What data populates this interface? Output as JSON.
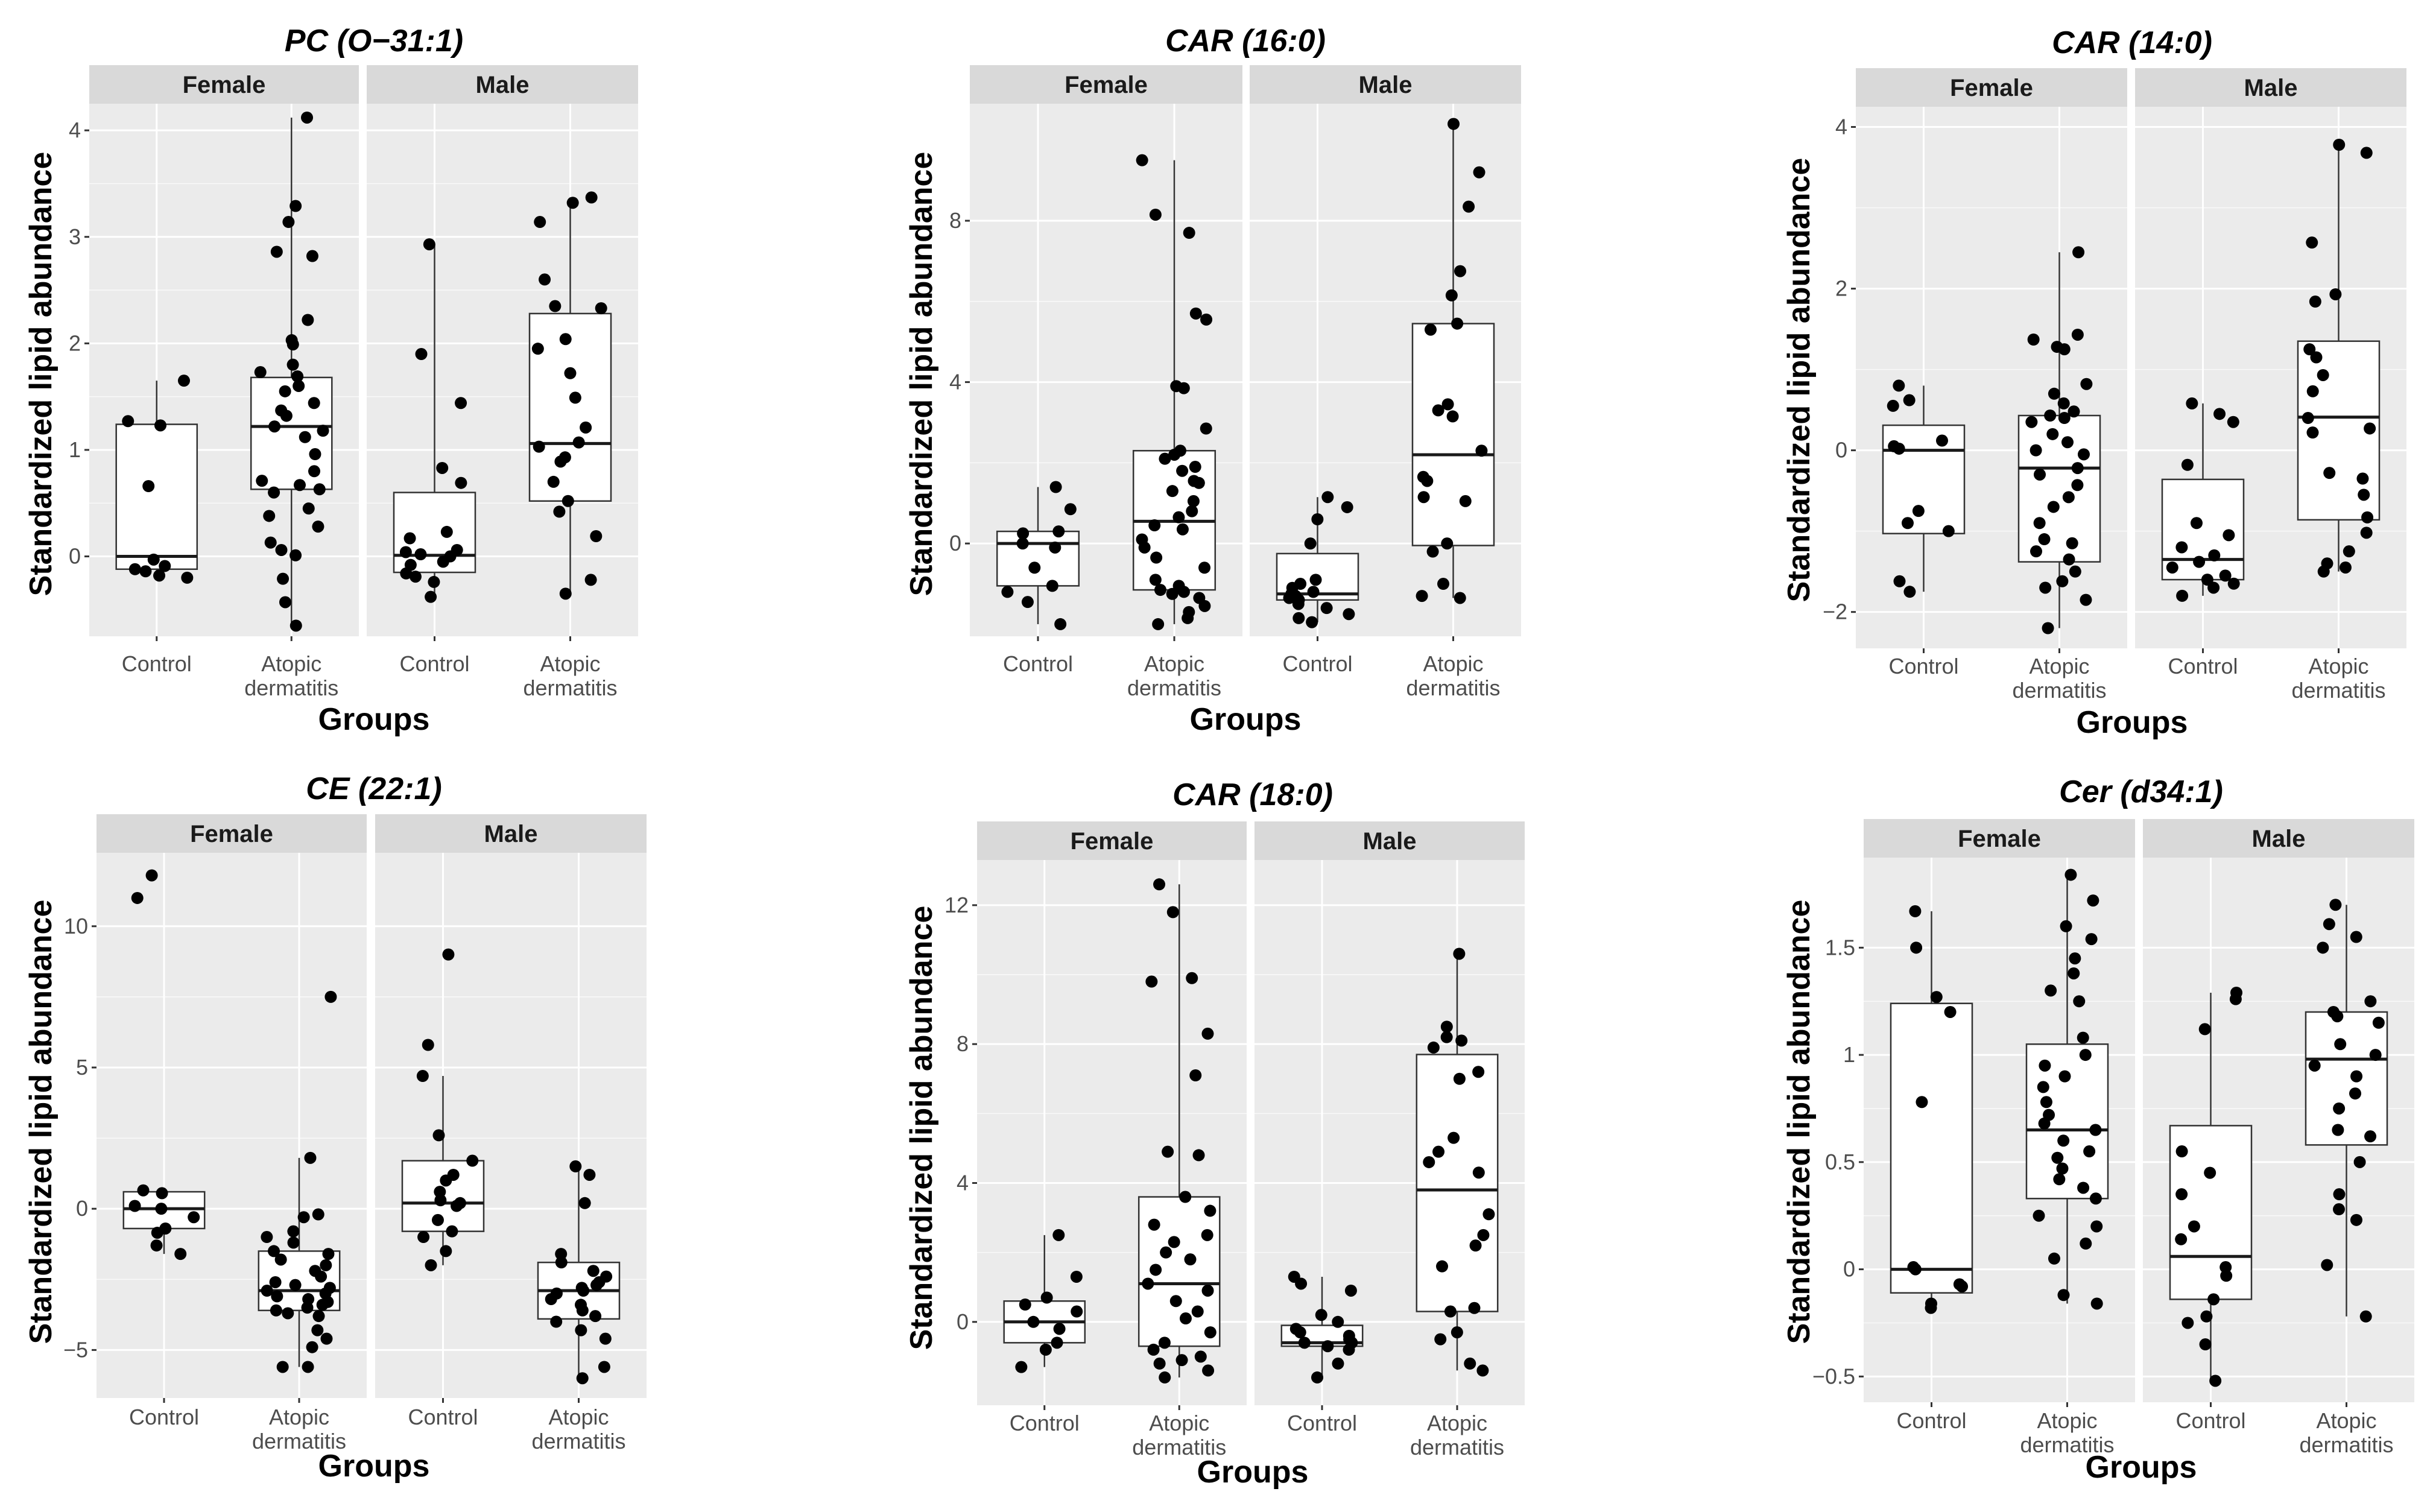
{
  "chart_data": [
    {
      "type": "boxplot",
      "title": "PC (O−31:1)",
      "xlabel": "Groups",
      "ylabel": "Standardized lipid abundance",
      "facets": [
        "Female",
        "Male"
      ],
      "categories": [
        "Control",
        "Atopic dermatitis"
      ],
      "ylim": [
        -0.75,
        4.25
      ],
      "yticks": [
        0,
        1,
        2,
        3,
        4
      ],
      "boxes": [
        {
          "facet": "Female",
          "group": "Control",
          "q1": -0.12,
          "median": 0.0,
          "q3": 1.24,
          "whisker_low": -0.2,
          "whisker_high": 1.65
        },
        {
          "facet": "Female",
          "group": "Atopic dermatitis",
          "q1": 0.63,
          "median": 1.22,
          "q3": 1.68,
          "whisker_low": -0.65,
          "whisker_high": 4.12
        },
        {
          "facet": "Male",
          "group": "Control",
          "q1": -0.15,
          "median": 0.01,
          "q3": 0.6,
          "whisker_low": -0.38,
          "whisker_high": 2.93
        },
        {
          "facet": "Male",
          "group": "Atopic dermatitis",
          "q1": 0.52,
          "median": 1.06,
          "q3": 2.28,
          "whisker_low": -0.35,
          "whisker_high": 3.37
        }
      ],
      "points": [
        {
          "facet": "Female",
          "group": "Control",
          "values": [
            1.65,
            1.27,
            1.23,
            0.66,
            -0.03,
            -0.09,
            -0.12,
            -0.14,
            -0.18,
            -0.2
          ]
        },
        {
          "facet": "Female",
          "group": "Atopic dermatitis",
          "values": [
            4.12,
            3.29,
            3.14,
            2.86,
            2.82,
            2.22,
            2.03,
            1.99,
            1.8,
            1.73,
            1.69,
            1.6,
            1.55,
            1.44,
            1.37,
            1.32,
            1.22,
            1.18,
            1.12,
            0.96,
            0.8,
            0.71,
            0.67,
            0.63,
            0.6,
            0.45,
            0.38,
            0.28,
            0.13,
            0.06,
            0.01,
            -0.21,
            -0.43,
            -0.65
          ]
        },
        {
          "facet": "Male",
          "group": "Control",
          "values": [
            2.93,
            1.9,
            1.44,
            0.83,
            0.69,
            0.23,
            0.17,
            0.06,
            0.04,
            0.02,
            0.0,
            -0.05,
            -0.08,
            -0.16,
            -0.19,
            -0.24,
            -0.38
          ]
        },
        {
          "facet": "Male",
          "group": "Atopic dermatitis",
          "values": [
            3.37,
            3.32,
            3.14,
            2.6,
            2.35,
            2.33,
            2.04,
            1.95,
            1.72,
            1.49,
            1.21,
            1.07,
            1.03,
            0.93,
            0.89,
            0.7,
            0.52,
            0.42,
            0.19,
            -0.22,
            -0.35
          ]
        }
      ]
    },
    {
      "type": "boxplot",
      "title": "CAR (16:0)",
      "xlabel": "Groups",
      "ylabel": "Standardized lipid abundance",
      "facets": [
        "Female",
        "Male"
      ],
      "categories": [
        "Control",
        "Atopic dermatitis"
      ],
      "ylim": [
        -2.3,
        10.9
      ],
      "yticks": [
        0,
        4,
        8
      ],
      "boxes": [
        {
          "facet": "Female",
          "group": "Control",
          "q1": -1.05,
          "median": 0.0,
          "q3": 0.3,
          "whisker_low": -2.0,
          "whisker_high": 1.4
        },
        {
          "facet": "Female",
          "group": "Atopic dermatitis",
          "q1": -1.15,
          "median": 0.55,
          "q3": 2.3,
          "whisker_low": -2.0,
          "whisker_high": 9.5
        },
        {
          "facet": "Male",
          "group": "Control",
          "q1": -1.4,
          "median": -1.25,
          "q3": -0.25,
          "whisker_low": -1.95,
          "whisker_high": 1.15
        },
        {
          "facet": "Male",
          "group": "Atopic dermatitis",
          "q1": -0.05,
          "median": 2.2,
          "q3": 5.45,
          "whisker_low": -1.35,
          "whisker_high": 10.4
        }
      ],
      "points": [
        {
          "facet": "Female",
          "group": "Control",
          "values": [
            1.4,
            0.85,
            0.3,
            0.25,
            0.0,
            -0.1,
            -0.6,
            -1.05,
            -1.2,
            -1.45,
            -2.0
          ]
        },
        {
          "facet": "Female",
          "group": "Atopic dermatitis",
          "values": [
            9.5,
            8.15,
            7.7,
            5.7,
            5.55,
            3.9,
            3.85,
            2.85,
            2.3,
            2.2,
            2.1,
            1.9,
            1.8,
            1.55,
            1.5,
            1.3,
            1.05,
            0.8,
            0.65,
            0.45,
            0.35,
            0.1,
            -0.1,
            -0.35,
            -0.6,
            -0.9,
            -1.05,
            -1.15,
            -1.2,
            -1.25,
            -1.35,
            -1.55,
            -1.7,
            -1.85,
            -2.0
          ]
        },
        {
          "facet": "Male",
          "group": "Control",
          "values": [
            1.15,
            0.9,
            0.6,
            0.0,
            -0.9,
            -1.0,
            -1.1,
            -1.2,
            -1.25,
            -1.3,
            -1.35,
            -1.4,
            -1.5,
            -1.6,
            -1.75,
            -1.85,
            -1.95
          ]
        },
        {
          "facet": "Male",
          "group": "Atopic dermatitis",
          "values": [
            10.4,
            9.2,
            8.35,
            6.75,
            6.15,
            5.45,
            5.3,
            3.45,
            3.3,
            3.15,
            2.3,
            1.65,
            1.55,
            1.15,
            1.05,
            0.0,
            -0.2,
            -1.0,
            -1.3,
            -1.35
          ]
        }
      ]
    },
    {
      "type": "boxplot",
      "title": "CAR (14:0)",
      "xlabel": "Groups",
      "ylabel": "Standardized lipid abundance",
      "facets": [
        "Female",
        "Male"
      ],
      "categories": [
        "Control",
        "Atopic dermatitis"
      ],
      "ylim": [
        -2.45,
        4.25
      ],
      "yticks": [
        -2,
        0,
        2,
        4
      ],
      "boxes": [
        {
          "facet": "Female",
          "group": "Control",
          "q1": -1.03,
          "median": 0.0,
          "q3": 0.31,
          "whisker_low": -1.75,
          "whisker_high": 0.8
        },
        {
          "facet": "Female",
          "group": "Atopic dermatitis",
          "q1": -1.38,
          "median": -0.22,
          "q3": 0.43,
          "whisker_low": -2.2,
          "whisker_high": 2.45
        },
        {
          "facet": "Male",
          "group": "Control",
          "q1": -1.6,
          "median": -1.35,
          "q3": -0.36,
          "whisker_low": -1.8,
          "whisker_high": 0.58
        },
        {
          "facet": "Male",
          "group": "Atopic dermatitis",
          "q1": -0.86,
          "median": 0.41,
          "q3": 1.35,
          "whisker_low": -1.5,
          "whisker_high": 3.78
        }
      ],
      "points": [
        {
          "facet": "Female",
          "group": "Control",
          "values": [
            0.8,
            0.62,
            0.55,
            0.12,
            0.05,
            0.02,
            -0.75,
            -0.9,
            -1.0,
            -1.62,
            -1.75
          ]
        },
        {
          "facet": "Female",
          "group": "Atopic dermatitis",
          "values": [
            2.45,
            1.43,
            1.37,
            1.28,
            1.25,
            0.82,
            0.7,
            0.58,
            0.48,
            0.43,
            0.4,
            0.35,
            0.2,
            0.1,
            0.0,
            -0.05,
            -0.22,
            -0.3,
            -0.43,
            -0.58,
            -0.7,
            -0.9,
            -1.1,
            -1.15,
            -1.25,
            -1.35,
            -1.5,
            -1.62,
            -1.7,
            -1.85,
            -2.2
          ]
        },
        {
          "facet": "Male",
          "group": "Control",
          "values": [
            0.58,
            0.45,
            0.35,
            -0.18,
            -0.9,
            -1.05,
            -1.2,
            -1.3,
            -1.38,
            -1.45,
            -1.55,
            -1.6,
            -1.65,
            -1.7,
            -1.8
          ]
        },
        {
          "facet": "Male",
          "group": "Atopic dermatitis",
          "values": [
            3.78,
            3.68,
            2.57,
            1.93,
            1.84,
            1.25,
            1.15,
            0.93,
            0.73,
            0.4,
            0.27,
            0.22,
            -0.28,
            -0.35,
            -0.55,
            -0.83,
            -1.02,
            -1.25,
            -1.4,
            -1.45,
            -1.5
          ]
        }
      ]
    },
    {
      "type": "boxplot",
      "title": "CE (22:1)",
      "xlabel": "Groups",
      "ylabel": "Standardized lipid abundance",
      "facets": [
        "Female",
        "Male"
      ],
      "categories": [
        "Control",
        "Atopic dermatitis"
      ],
      "ylim": [
        -6.7,
        12.6
      ],
      "yticks": [
        -5,
        0,
        5,
        10
      ],
      "boxes": [
        {
          "facet": "Female",
          "group": "Control",
          "q1": -0.7,
          "median": 0.0,
          "q3": 0.6,
          "whisker_low": -1.6,
          "whisker_high": 0.65
        },
        {
          "facet": "Female",
          "group": "Atopic dermatitis",
          "q1": -3.6,
          "median": -2.9,
          "q3": -1.5,
          "whisker_low": -5.6,
          "whisker_high": 1.8
        },
        {
          "facet": "Male",
          "group": "Control",
          "q1": -0.8,
          "median": 0.2,
          "q3": 1.7,
          "whisker_low": -2.0,
          "whisker_high": 4.7
        },
        {
          "facet": "Male",
          "group": "Atopic dermatitis",
          "q1": -3.9,
          "median": -2.9,
          "q3": -1.9,
          "whisker_low": -6.0,
          "whisker_high": 1.5
        }
      ],
      "points": [
        {
          "facet": "Female",
          "group": "Control",
          "values": [
            11.8,
            11.0,
            0.65,
            0.55,
            0.1,
            0.0,
            -0.3,
            -0.7,
            -0.85,
            -1.3,
            -1.6
          ]
        },
        {
          "facet": "Female",
          "group": "Atopic dermatitis",
          "values": [
            7.5,
            1.8,
            -0.2,
            -0.3,
            -0.8,
            -1.0,
            -1.2,
            -1.5,
            -1.6,
            -1.8,
            -2.0,
            -2.2,
            -2.4,
            -2.6,
            -2.7,
            -2.8,
            -2.9,
            -3.0,
            -3.1,
            -3.2,
            -3.3,
            -3.4,
            -3.5,
            -3.6,
            -3.7,
            -3.8,
            -4.3,
            -4.6,
            -4.9,
            -5.6,
            -5.6
          ]
        },
        {
          "facet": "Male",
          "group": "Control",
          "values": [
            9.0,
            5.8,
            4.7,
            2.6,
            1.7,
            1.2,
            1.0,
            0.6,
            0.3,
            0.2,
            0.1,
            -0.4,
            -0.8,
            -1.0,
            -1.5,
            -2.0
          ]
        },
        {
          "facet": "Male",
          "group": "Atopic dermatitis",
          "values": [
            1.5,
            1.2,
            0.2,
            -1.6,
            -1.9,
            -2.2,
            -2.4,
            -2.6,
            -2.7,
            -2.8,
            -2.9,
            -3.0,
            -3.2,
            -3.4,
            -3.6,
            -3.8,
            -4.0,
            -4.3,
            -4.6,
            -5.6,
            -6.0
          ]
        }
      ]
    },
    {
      "type": "boxplot",
      "title": "CAR (18:0)",
      "xlabel": "Groups",
      "ylabel": "Standardized lipid abundance",
      "facets": [
        "Female",
        "Male"
      ],
      "categories": [
        "Control",
        "Atopic dermatitis"
      ],
      "ylim": [
        -2.4,
        13.3
      ],
      "yticks": [
        0,
        4,
        8,
        12
      ],
      "boxes": [
        {
          "facet": "Female",
          "group": "Control",
          "q1": -0.6,
          "median": 0.0,
          "q3": 0.6,
          "whisker_low": -1.3,
          "whisker_high": 2.5
        },
        {
          "facet": "Female",
          "group": "Atopic dermatitis",
          "q1": -0.7,
          "median": 1.1,
          "q3": 3.6,
          "whisker_low": -1.6,
          "whisker_high": 12.6
        },
        {
          "facet": "Male",
          "group": "Control",
          "q1": -0.7,
          "median": -0.6,
          "q3": -0.1,
          "whisker_low": -1.6,
          "whisker_high": 1.3
        },
        {
          "facet": "Male",
          "group": "Atopic dermatitis",
          "q1": 0.3,
          "median": 3.8,
          "q3": 7.7,
          "whisker_low": -1.4,
          "whisker_high": 10.6
        }
      ],
      "points": [
        {
          "facet": "Female",
          "group": "Control",
          "values": [
            2.5,
            1.3,
            0.7,
            0.5,
            0.3,
            0.0,
            -0.2,
            -0.6,
            -0.8,
            -1.3
          ]
        },
        {
          "facet": "Female",
          "group": "Atopic dermatitis",
          "values": [
            12.6,
            11.8,
            9.9,
            9.8,
            8.3,
            7.1,
            4.9,
            4.8,
            3.6,
            3.2,
            2.8,
            2.5,
            2.3,
            2.0,
            1.8,
            1.5,
            1.1,
            0.9,
            0.6,
            0.3,
            0.1,
            -0.3,
            -0.6,
            -0.8,
            -1.0,
            -1.1,
            -1.2,
            -1.4,
            -1.6
          ]
        },
        {
          "facet": "Male",
          "group": "Control",
          "values": [
            1.3,
            1.1,
            0.9,
            0.2,
            0.0,
            -0.2,
            -0.3,
            -0.4,
            -0.5,
            -0.6,
            -0.6,
            -0.7,
            -0.8,
            -1.2,
            -1.6
          ]
        },
        {
          "facet": "Male",
          "group": "Atopic dermatitis",
          "values": [
            10.6,
            8.5,
            8.2,
            8.1,
            7.9,
            7.2,
            7.0,
            5.3,
            4.9,
            4.6,
            4.3,
            3.1,
            2.5,
            2.2,
            1.6,
            0.4,
            0.3,
            -0.3,
            -0.5,
            -1.2,
            -1.4
          ]
        }
      ]
    },
    {
      "type": "boxplot",
      "title": "Cer (d34:1)",
      "xlabel": "Groups",
      "ylabel": "Standardized lipid abundance",
      "facets": [
        "Female",
        "Male"
      ],
      "categories": [
        "Control",
        "Atopic dermatitis"
      ],
      "ylim": [
        -0.62,
        1.92
      ],
      "yticks": [
        -0.5,
        0.0,
        0.5,
        1.0,
        1.5
      ],
      "boxes": [
        {
          "facet": "Female",
          "group": "Control",
          "q1": -0.11,
          "median": 0.0,
          "q3": 1.24,
          "whisker_low": -0.18,
          "whisker_high": 1.67
        },
        {
          "facet": "Female",
          "group": "Atopic dermatitis",
          "q1": 0.33,
          "median": 0.65,
          "q3": 1.05,
          "whisker_low": -0.16,
          "whisker_high": 1.84
        },
        {
          "facet": "Male",
          "group": "Control",
          "q1": -0.14,
          "median": 0.06,
          "q3": 0.67,
          "whisker_low": -0.52,
          "whisker_high": 1.29
        },
        {
          "facet": "Male",
          "group": "Atopic dermatitis",
          "q1": 0.58,
          "median": 0.98,
          "q3": 1.2,
          "whisker_low": -0.22,
          "whisker_high": 1.7
        }
      ],
      "points": [
        {
          "facet": "Female",
          "group": "Control",
          "values": [
            1.67,
            1.5,
            1.27,
            1.2,
            0.78,
            0.01,
            0.0,
            -0.07,
            -0.08,
            -0.16,
            -0.18
          ]
        },
        {
          "facet": "Female",
          "group": "Atopic dermatitis",
          "values": [
            1.84,
            1.72,
            1.6,
            1.54,
            1.45,
            1.38,
            1.3,
            1.25,
            1.08,
            1.0,
            0.95,
            0.9,
            0.85,
            0.78,
            0.72,
            0.68,
            0.65,
            0.6,
            0.55,
            0.52,
            0.47,
            0.42,
            0.38,
            0.33,
            0.25,
            0.2,
            0.12,
            0.05,
            -0.12,
            -0.16
          ]
        },
        {
          "facet": "Male",
          "group": "Control",
          "values": [
            1.29,
            1.26,
            1.12,
            0.55,
            0.45,
            0.35,
            0.2,
            0.14,
            0.01,
            -0.03,
            -0.14,
            -0.22,
            -0.25,
            -0.35,
            -0.52
          ]
        },
        {
          "facet": "Male",
          "group": "Atopic dermatitis",
          "values": [
            1.7,
            1.61,
            1.55,
            1.5,
            1.25,
            1.2,
            1.18,
            1.15,
            1.05,
            1.0,
            0.95,
            0.9,
            0.82,
            0.75,
            0.65,
            0.62,
            0.5,
            0.35,
            0.28,
            0.23,
            0.02,
            -0.22
          ]
        }
      ]
    }
  ]
}
